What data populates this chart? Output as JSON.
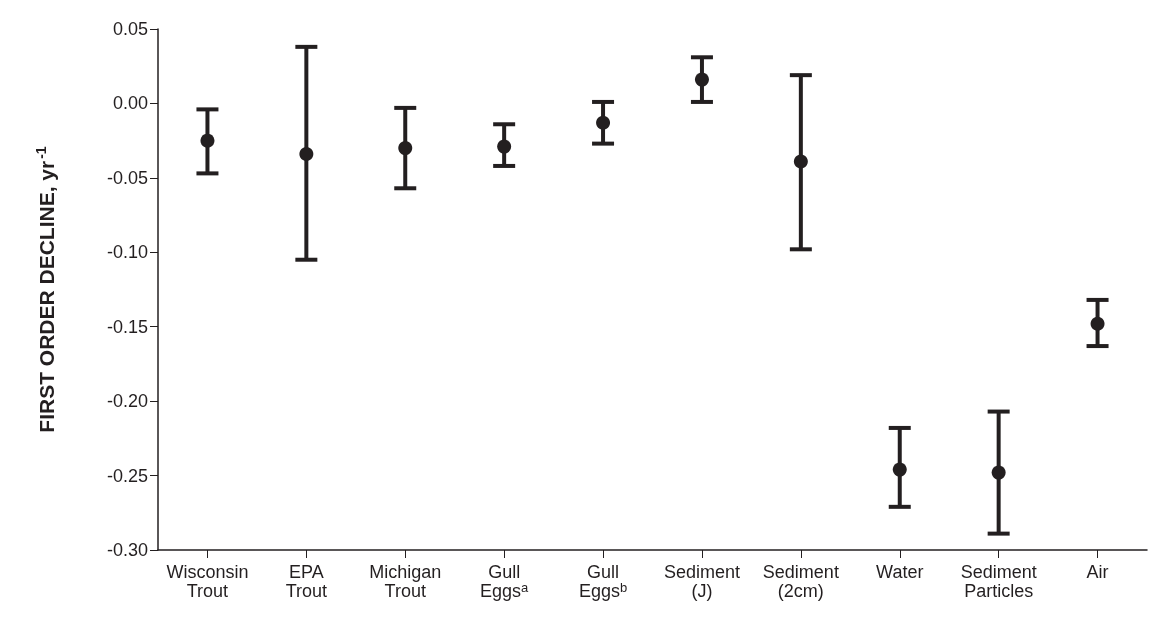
{
  "chart_data": {
    "type": "scatter",
    "ylabel": "FIRST ORDER DECLINE, yr$^{-1}$",
    "categories": [
      "Wisconsin\nTrout",
      "EPA\nTrout",
      "Michigan\nTrout",
      "Gull\nEggs$^{a}$",
      "Gull\nEggs$^{b}$",
      "Sediment\n(J)",
      "Sediment\n(2cm)",
      "Water",
      "Sediment\nParticles",
      "Air"
    ],
    "values": [
      -0.025,
      -0.034,
      -0.03,
      -0.029,
      -0.013,
      0.016,
      -0.039,
      -0.246,
      -0.248,
      -0.148
    ],
    "errors": [
      [
        -0.047,
        -0.004
      ],
      [
        -0.105,
        0.038
      ],
      [
        -0.057,
        -0.003
      ],
      [
        -0.042,
        -0.014
      ],
      [
        -0.027,
        0.001
      ],
      [
        0.001,
        0.031
      ],
      [
        -0.098,
        0.019
      ],
      [
        -0.271,
        -0.218
      ],
      [
        -0.289,
        -0.207
      ],
      [
        -0.163,
        -0.132
      ]
    ],
    "color": "#231f20",
    "marker": "circle",
    "ylim": [
      -0.3,
      0.05
    ],
    "yticks": [
      {
        "value": -0.3,
        "label": "-0.30"
      },
      {
        "value": -0.25,
        "label": "-0.25"
      },
      {
        "value": -0.2,
        "label": "-0.20"
      },
      {
        "value": -0.15,
        "label": "-0.15"
      },
      {
        "value": -0.1,
        "label": "-0.10"
      },
      {
        "value": -0.05,
        "label": "-0.05"
      },
      {
        "value": 0,
        "label": "0.00"
      },
      {
        "value": 0.05,
        "label": "0.05"
      }
    ],
    "grid": false
  }
}
